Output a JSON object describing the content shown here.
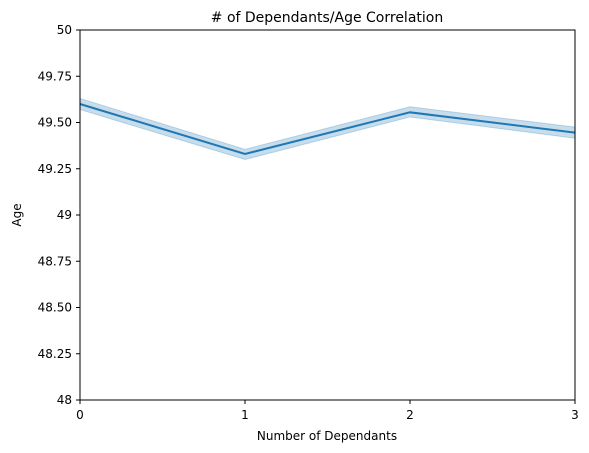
{
  "chart_data": {
    "type": "line",
    "title": "# of Dependants/Age Correlation",
    "xlabel": "Number of Dependants",
    "ylabel": "Age",
    "xlim": [
      0,
      3
    ],
    "ylim": [
      48,
      50
    ],
    "x_ticks": [
      "0",
      "1",
      "2",
      "3"
    ],
    "y_ticks": [
      "48",
      "48.25",
      "48.50",
      "48.75",
      "49",
      "49.25",
      "49.50",
      "49.75",
      "50"
    ],
    "grid": false,
    "legend": "none",
    "series": [
      {
        "x": [
          0,
          1,
          2,
          3
        ],
        "values": [
          49.6,
          49.33,
          49.555,
          49.445
        ],
        "ci_lower": [
          49.57,
          49.3,
          49.53,
          49.415
        ],
        "ci_upper": [
          49.63,
          49.355,
          49.585,
          49.475
        ]
      }
    ],
    "colors": {
      "line": "#1f77b4",
      "band": "#1f77b4"
    }
  }
}
